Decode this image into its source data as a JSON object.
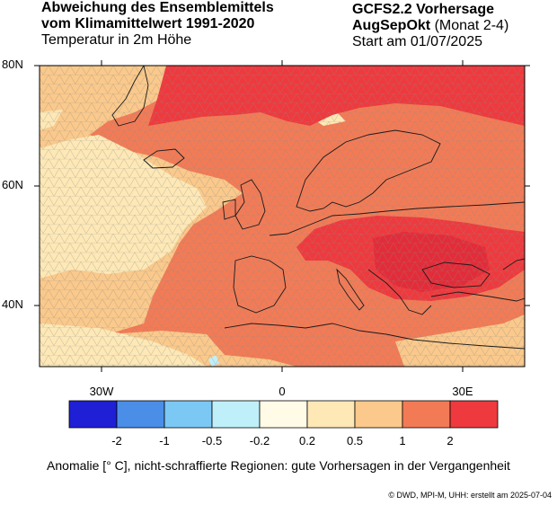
{
  "title": {
    "line1": "Abweichung des Ensemblemittels",
    "line2": "vom Klimamittelwert 1991-2020",
    "line3": "Temperatur in 2m Höhe"
  },
  "model": {
    "line1": "GCFS2.2 Vorhersage",
    "season": "AugSepOkt",
    "season_note": "(Monat 2-4)",
    "start": "Start am 01/07/2025"
  },
  "axes": {
    "lat_labels": [
      "80N",
      "60N",
      "40N"
    ],
    "lon_labels": [
      "30W",
      "0",
      "30E"
    ]
  },
  "colorbar": {
    "colors": [
      "#1f1fd6",
      "#4a8ee8",
      "#7cc8f5",
      "#bff0fa",
      "#fffbe6",
      "#fde8b6",
      "#fac98b",
      "#f27b56",
      "#ee3a3e"
    ],
    "labels": [
      "-2",
      "-1",
      "-0.5",
      "-0.2",
      "0.2",
      "0.5",
      "1",
      "2"
    ]
  },
  "caption": "Anomalie [° C], nicht-schraffierte Regionen: gute Vorhersagen in der Vergangenheit",
  "credit": "©  DWD, MPI-M, UHH: erstellt am 2025-07-04"
}
